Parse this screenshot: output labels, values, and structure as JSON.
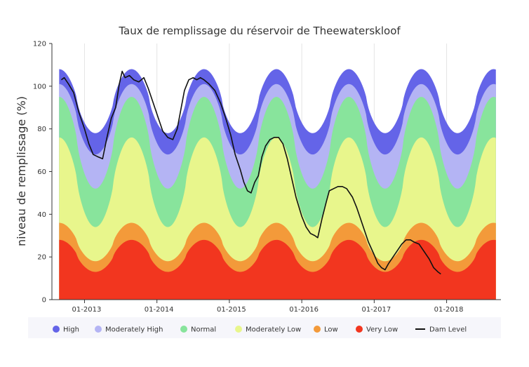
{
  "chart_data": {
    "type": "area",
    "title": "Taux de remplissage du réservoir de Theewaterskloof",
    "xlabel": "",
    "ylabel": "niveau de remplissage (%)",
    "ylim": [
      0,
      120
    ],
    "yticks": [
      0,
      20,
      40,
      60,
      80,
      100,
      120
    ],
    "xlim": [
      2012.55,
      2018.75
    ],
    "xticks": [
      {
        "x": 2013.0,
        "label": "01-2013"
      },
      {
        "x": 2014.0,
        "label": "01-2014"
      },
      {
        "x": 2015.0,
        "label": "01-2015"
      },
      {
        "x": 2016.0,
        "label": "01-2016"
      },
      {
        "x": 2017.0,
        "label": "01-2017"
      },
      {
        "x": 2018.0,
        "label": "01-2018"
      }
    ],
    "grid": "vertical",
    "legend_position": "bottom",
    "band_x_range": [
      2012.65,
      2018.68
    ],
    "bands": [
      {
        "name": "High",
        "color": "#6464e8",
        "min": 78,
        "max": 108
      },
      {
        "name": "Moderately High",
        "color": "#b4b4f4",
        "min": 68,
        "max": 101
      },
      {
        "name": "Normal",
        "color": "#88e49c",
        "min": 52,
        "max": 95
      },
      {
        "name": "Moderately Low",
        "color": "#e8f68c",
        "min": 34,
        "max": 76
      },
      {
        "name": "Low",
        "color": "#f39a3a",
        "min": 18,
        "max": 36
      },
      {
        "name": "Very Low",
        "color": "#f2361f",
        "min": 13,
        "max": 28
      }
    ],
    "dam_level": {
      "name": "Dam Level",
      "color": "#111111",
      "points": [
        [
          2012.68,
          103
        ],
        [
          2012.72,
          104
        ],
        [
          2012.78,
          101
        ],
        [
          2012.85,
          97
        ],
        [
          2012.92,
          88
        ],
        [
          2013.0,
          80
        ],
        [
          2013.06,
          73
        ],
        [
          2013.12,
          68
        ],
        [
          2013.18,
          67
        ],
        [
          2013.25,
          66
        ],
        [
          2013.31,
          76
        ],
        [
          2013.37,
          85
        ],
        [
          2013.43,
          90
        ],
        [
          2013.48,
          101
        ],
        [
          2013.52,
          107
        ],
        [
          2013.56,
          104
        ],
        [
          2013.62,
          105
        ],
        [
          2013.68,
          103
        ],
        [
          2013.75,
          102
        ],
        [
          2013.82,
          104
        ],
        [
          2013.88,
          99
        ],
        [
          2013.95,
          92
        ],
        [
          2014.02,
          85
        ],
        [
          2014.08,
          79
        ],
        [
          2014.15,
          76
        ],
        [
          2014.22,
          75
        ],
        [
          2014.28,
          80
        ],
        [
          2014.33,
          89
        ],
        [
          2014.38,
          98
        ],
        [
          2014.44,
          103
        ],
        [
          2014.5,
          104
        ],
        [
          2014.55,
          103
        ],
        [
          2014.6,
          104
        ],
        [
          2014.65,
          103
        ],
        [
          2014.72,
          101
        ],
        [
          2014.8,
          98
        ],
        [
          2014.88,
          92
        ],
        [
          2014.95,
          85
        ],
        [
          2015.02,
          77
        ],
        [
          2015.08,
          68
        ],
        [
          2015.15,
          61
        ],
        [
          2015.2,
          55
        ],
        [
          2015.25,
          51
        ],
        [
          2015.3,
          50
        ],
        [
          2015.35,
          55
        ],
        [
          2015.4,
          58
        ],
        [
          2015.45,
          67
        ],
        [
          2015.5,
          72
        ],
        [
          2015.56,
          75
        ],
        [
          2015.62,
          76
        ],
        [
          2015.68,
          76
        ],
        [
          2015.74,
          73
        ],
        [
          2015.8,
          66
        ],
        [
          2015.86,
          57
        ],
        [
          2015.92,
          48
        ],
        [
          2016.0,
          39
        ],
        [
          2016.06,
          34
        ],
        [
          2016.12,
          31
        ],
        [
          2016.18,
          30
        ],
        [
          2016.22,
          29
        ],
        [
          2016.28,
          38
        ],
        [
          2016.34,
          46
        ],
        [
          2016.38,
          51
        ],
        [
          2016.44,
          52
        ],
        [
          2016.5,
          53
        ],
        [
          2016.56,
          53
        ],
        [
          2016.62,
          52
        ],
        [
          2016.7,
          48
        ],
        [
          2016.76,
          43
        ],
        [
          2016.84,
          35
        ],
        [
          2016.92,
          27
        ],
        [
          2017.0,
          21
        ],
        [
          2017.05,
          17
        ],
        [
          2017.1,
          15
        ],
        [
          2017.15,
          14
        ],
        [
          2017.2,
          17
        ],
        [
          2017.26,
          20
        ],
        [
          2017.32,
          23
        ],
        [
          2017.38,
          26
        ],
        [
          2017.44,
          28
        ],
        [
          2017.5,
          28
        ],
        [
          2017.55,
          27
        ],
        [
          2017.62,
          26
        ],
        [
          2017.7,
          22
        ],
        [
          2017.76,
          19
        ],
        [
          2017.82,
          15
        ],
        [
          2017.88,
          13
        ],
        [
          2017.92,
          12
        ]
      ]
    },
    "legend": [
      {
        "label": "High",
        "color": "#6464e8",
        "marker": "circle"
      },
      {
        "label": "Moderately High",
        "color": "#b4b4f4",
        "marker": "circle"
      },
      {
        "label": "Normal",
        "color": "#88e49c",
        "marker": "circle"
      },
      {
        "label": "Moderately Low",
        "color": "#e8f68c",
        "marker": "circle"
      },
      {
        "label": "Low",
        "color": "#f39a3a",
        "marker": "circle"
      },
      {
        "label": "Very Low",
        "color": "#f2361f",
        "marker": "circle"
      },
      {
        "label": "Dam Level",
        "color": "#111111",
        "marker": "line"
      }
    ]
  }
}
